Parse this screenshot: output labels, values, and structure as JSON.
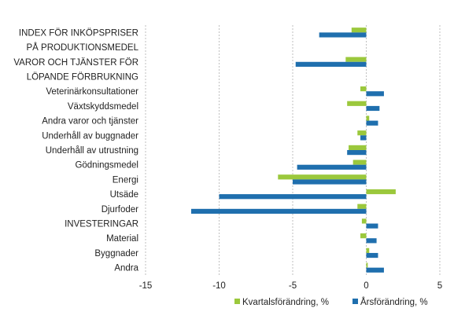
{
  "chart_data": {
    "type": "bar",
    "orientation": "horizontal",
    "categories": [
      "INDEX FÖR INKÖPSPRISER",
      "PÅ PRODUKTIONSMEDEL",
      "VAROR OCH TJÄNSTER FÖR",
      "LÖPANDE FÖRBRUKNING",
      "Veterinärkonsultationer",
      "Växtskyddsmedel",
      "Andra varor och tjänster",
      "Underhåll av buggnader",
      "Underhåll av utrustning",
      "Gödningsmedel",
      "Energi",
      "Utsäde",
      "Djurfoder",
      "INVESTERINGAR",
      "Material",
      "Byggnader",
      "Andra"
    ],
    "series": [
      {
        "name": "Kvartalsförändring, %",
        "color": "#9bc83c",
        "values": [
          -1.0,
          null,
          -1.4,
          null,
          -0.4,
          -1.3,
          0.2,
          -0.6,
          -1.2,
          -0.9,
          -6.0,
          2.0,
          -0.6,
          -0.3,
          -0.4,
          0.2,
          0.1
        ]
      },
      {
        "name": "Årsförändring, %",
        "color": "#1f6fae",
        "values": [
          -3.2,
          null,
          -4.8,
          null,
          1.2,
          0.9,
          0.8,
          -0.4,
          -1.3,
          -4.7,
          -5.0,
          -10.0,
          -11.9,
          0.8,
          0.7,
          0.8,
          1.2
        ]
      }
    ],
    "xticks": [
      -15,
      -10,
      -5,
      0,
      5
    ],
    "xlim": [
      -15,
      5
    ],
    "grid": true,
    "legend_position": "bottom-right"
  }
}
